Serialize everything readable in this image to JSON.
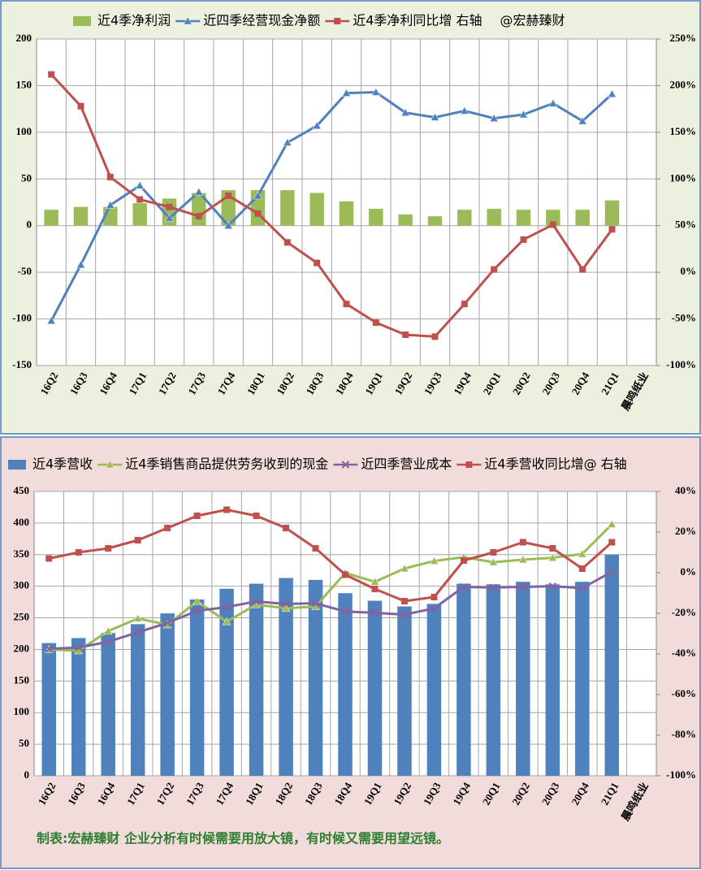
{
  "chart_data": [
    {
      "type": "combo",
      "categories": [
        "16Q2",
        "16Q3",
        "16Q4",
        "17Q1",
        "17Q2",
        "17Q3",
        "17Q4",
        "18Q1",
        "18Q2",
        "18Q3",
        "18Q4",
        "19Q1",
        "19Q2",
        "19Q3",
        "19Q4",
        "20Q1",
        "20Q2",
        "20Q3",
        "20Q4",
        "21Q1",
        "晨鸣纸业"
      ],
      "legend_note": "@宏赫臻财",
      "grid": true,
      "ylim": [
        -150,
        200
      ],
      "yticks": [
        -150,
        -100,
        -50,
        0,
        50,
        100,
        150,
        200
      ],
      "y2lim": [
        -100,
        250
      ],
      "y2ticks": [
        {
          "value": -100,
          "label": "-100%"
        },
        {
          "value": -50,
          "label": "-50%"
        },
        {
          "value": 0,
          "label": "0%"
        },
        {
          "value": 50,
          "label": "50%"
        },
        {
          "value": 100,
          "label": "100%"
        },
        {
          "value": 150,
          "label": "150%"
        },
        {
          "value": 200,
          "label": "200%"
        },
        {
          "value": 250,
          "label": "250%"
        }
      ],
      "series": [
        {
          "name": "近4季净利润",
          "type": "bar",
          "color": "#9bbb59",
          "values": [
            17,
            20,
            20,
            24,
            29,
            35,
            38,
            38,
            38,
            35,
            26,
            18,
            12,
            10,
            17,
            18,
            17,
            17,
            17,
            27,
            null
          ]
        },
        {
          "name": "近四季经营现金净额",
          "type": "line",
          "marker": "triangle",
          "color": "#4f81bd",
          "values": [
            -102,
            -42,
            22,
            43,
            8,
            36,
            0,
            32,
            89,
            107,
            142,
            143,
            121,
            116,
            123,
            115,
            119,
            131,
            112,
            141,
            null
          ]
        },
        {
          "name": "近4季净利同比增 右轴",
          "type": "line",
          "marker": "square",
          "color": "#c0504d",
          "axis": "y2",
          "values": [
            212,
            178,
            102,
            78,
            70,
            60,
            82,
            63,
            32,
            10,
            -34,
            -54,
            -67,
            -69,
            -34,
            3,
            35,
            51,
            3,
            46,
            null
          ]
        }
      ]
    },
    {
      "type": "combo",
      "categories": [
        "16Q2",
        "16Q3",
        "16Q4",
        "17Q1",
        "17Q2",
        "17Q3",
        "17Q4",
        "18Q1",
        "18Q2",
        "18Q3",
        "18Q4",
        "19Q1",
        "19Q2",
        "19Q3",
        "19Q4",
        "20Q1",
        "20Q2",
        "20Q3",
        "20Q4",
        "21Q1",
        "晨鸣纸业"
      ],
      "note": "制表:宏赫臻财     企业分析有时候需要用放大镜，有时候又需要用望远镜。",
      "grid": true,
      "ylim": [
        0,
        450
      ],
      "yticks": [
        0,
        50,
        100,
        150,
        200,
        250,
        300,
        350,
        400,
        450
      ],
      "y2lim": [
        -100,
        40
      ],
      "y2ticks": [
        {
          "value": -100,
          "label": "-100%"
        },
        {
          "value": -80,
          "label": "-80%"
        },
        {
          "value": -60,
          "label": "-60%"
        },
        {
          "value": -40,
          "label": "-40%"
        },
        {
          "value": -20,
          "label": "-20%"
        },
        {
          "value": 0,
          "label": "0%"
        },
        {
          "value": 20,
          "label": "20%"
        },
        {
          "value": 40,
          "label": "40%"
        }
      ],
      "series": [
        {
          "name": "近4季营收",
          "type": "bar",
          "color": "#4f81bd",
          "values": [
            210,
            218,
            226,
            240,
            257,
            279,
            296,
            304,
            313,
            310,
            289,
            277,
            268,
            272,
            304,
            303,
            307,
            303,
            307,
            350,
            null
          ]
        },
        {
          "name": "近4季销售商品提供劳务收到的现金",
          "type": "line",
          "marker": "triangle",
          "color": "#9bbb59",
          "values": [
            200,
            198,
            229,
            249,
            239,
            276,
            244,
            271,
            265,
            268,
            321,
            307,
            328,
            340,
            346,
            338,
            342,
            345,
            351,
            398,
            null
          ]
        },
        {
          "name": "近四季营业成本",
          "type": "line",
          "marker": "x",
          "color": "#8064a2",
          "values": [
            201,
            203,
            212,
            227,
            242,
            261,
            267,
            276,
            272,
            273,
            260,
            258,
            255,
            265,
            299,
            298,
            299,
            300,
            297,
            323,
            null
          ]
        },
        {
          "name": "近4季营收同比增@ 右轴",
          "type": "line",
          "marker": "square",
          "color": "#c0504d",
          "axis": "y2",
          "values": [
            7,
            10,
            12,
            16,
            22,
            28,
            31,
            28,
            22,
            12,
            -1,
            -8,
            -14,
            -12,
            6,
            10,
            15,
            12,
            2,
            15,
            null
          ]
        }
      ]
    }
  ]
}
